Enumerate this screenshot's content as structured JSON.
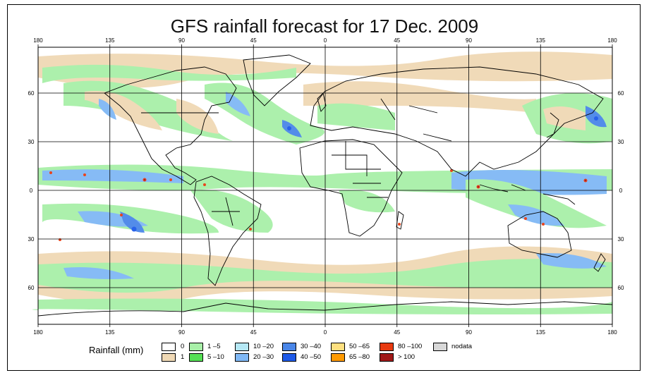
{
  "title": "GFS rainfall forecast for 17 Dec. 2009",
  "axes": {
    "lon_ticks": [
      "180",
      "135",
      "90",
      "45",
      "0",
      "45",
      "90",
      "135",
      "180"
    ],
    "lat_ticks_left": [
      "60",
      "30",
      "0",
      "30",
      "60"
    ],
    "lat_ticks_right": [
      "60",
      "30",
      "0",
      "30",
      "60"
    ]
  },
  "legend": {
    "title": "Rainfall (mm)",
    "items": [
      {
        "label": "0",
        "color": "#ffffff"
      },
      {
        "label": "1",
        "color": "#f0d9b5"
      },
      {
        "label": "1 –5",
        "color": "#a8f0a8"
      },
      {
        "label": "5 –10",
        "color": "#55e055"
      },
      {
        "label": "10 –20",
        "color": "#b5e8f5"
      },
      {
        "label": "20 –30",
        "color": "#80b8f5"
      },
      {
        "label": "30 –40",
        "color": "#4a86e8"
      },
      {
        "label": "40 –50",
        "color": "#1e5ae8"
      },
      {
        "label": "50 –65",
        "color": "#ffe080"
      },
      {
        "label": "65 –80",
        "color": "#ff9a00"
      },
      {
        "label": "80 –100",
        "color": "#e83a10"
      },
      {
        "label": "> 100",
        "color": "#a01818"
      },
      {
        "label": "nodata",
        "color": "#d8d8d8"
      }
    ]
  }
}
